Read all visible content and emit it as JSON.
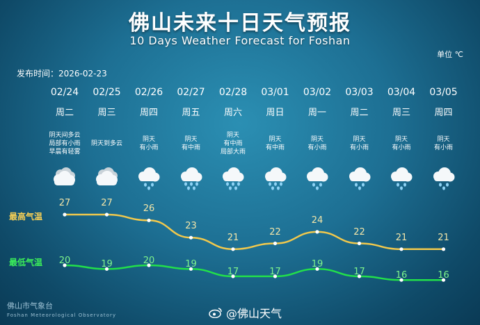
{
  "header": {
    "title": "佛山未来十日天气预报",
    "subtitle": "10 Days Weather Forecast for Foshan",
    "unit": "单位 ℃",
    "publish_time": "发布时间：2026-02-23"
  },
  "labels": {
    "high": "最高气温",
    "low": "最低气温"
  },
  "days": [
    {
      "date": "02/24",
      "weekday": "周二",
      "desc": "阴天间多云\n局部有小雨\n早晨有轻雾",
      "icon": "cloudy-icon",
      "high": "27",
      "low": "20"
    },
    {
      "date": "02/25",
      "weekday": "周三",
      "desc": "阴天到多云",
      "icon": "cloudy-icon",
      "high": "27",
      "low": "19"
    },
    {
      "date": "02/26",
      "weekday": "周四",
      "desc": "阴天\n有小雨",
      "icon": "light-rain-icon",
      "high": "26",
      "low": "20"
    },
    {
      "date": "02/27",
      "weekday": "周五",
      "desc": "阴天\n有中雨",
      "icon": "moderate-rain-icon",
      "high": "23",
      "low": "19"
    },
    {
      "date": "02/28",
      "weekday": "周六",
      "desc": "阴天\n有中雨\n局部大雨",
      "icon": "moderate-rain-icon",
      "high": "21",
      "low": "17"
    },
    {
      "date": "03/01",
      "weekday": "周日",
      "desc": "阴天\n有中雨",
      "icon": "moderate-rain-icon",
      "high": "22",
      "low": "17"
    },
    {
      "date": "03/02",
      "weekday": "周一",
      "desc": "阴天\n有小雨",
      "icon": "light-rain-icon",
      "high": "24",
      "low": "19"
    },
    {
      "date": "03/03",
      "weekday": "周二",
      "desc": "阴天\n有小雨",
      "icon": "light-rain-icon",
      "high": "22",
      "low": "17"
    },
    {
      "date": "03/04",
      "weekday": "周三",
      "desc": "阴天\n有小雨",
      "icon": "light-rain-icon",
      "high": "21",
      "low": "16"
    },
    {
      "date": "03/05",
      "weekday": "周四",
      "desc": "阴天\n有小雨",
      "icon": "light-rain-icon",
      "high": "21",
      "low": "16"
    }
  ],
  "footer": {
    "org": "佛山市气象台",
    "org_en": "Foshan Meteorological Observatory",
    "weibo": "@佛山天气"
  },
  "colors": {
    "high_line": "#f2c94c",
    "low_line": "#22e04a"
  }
}
